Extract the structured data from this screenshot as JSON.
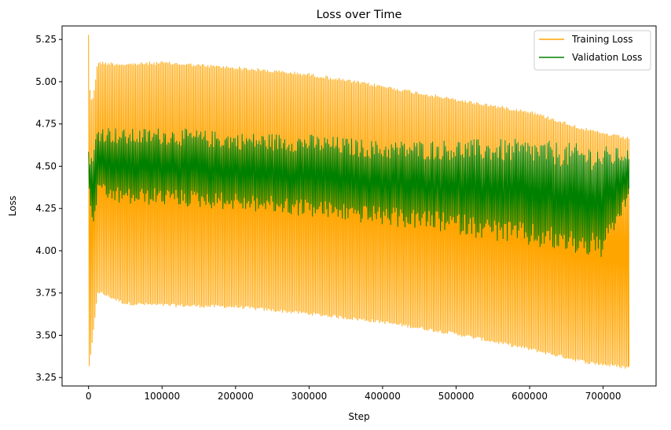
{
  "chart_data": {
    "type": "line",
    "title": "Loss over Time",
    "xlabel": "Step",
    "ylabel": "Loss",
    "xlim": [
      -36000,
      772000
    ],
    "ylim": [
      3.2,
      5.33
    ],
    "xticks": [
      0,
      100000,
      200000,
      300000,
      400000,
      500000,
      600000,
      700000
    ],
    "xtick_labels": [
      "0",
      "100000",
      "200000",
      "300000",
      "400000",
      "500000",
      "600000",
      "700000"
    ],
    "yticks": [
      3.25,
      3.5,
      3.75,
      4.0,
      4.25,
      4.5,
      4.75,
      5.0,
      5.25
    ],
    "ytick_labels": [
      "3.25",
      "3.50",
      "3.75",
      "4.00",
      "4.25",
      "4.50",
      "4.75",
      "5.00",
      "5.25"
    ],
    "grid": false,
    "legend_position": "top-right",
    "series": [
      {
        "name": "Training Loss",
        "color": "#FFA500",
        "oscillating": true,
        "upper_envelope": {
          "x": [
            0,
            2000,
            5000,
            9000,
            12000,
            50000,
            100000,
            200000,
            300000,
            400000,
            500000,
            600000,
            680000,
            735000
          ],
          "y": [
            5.29,
            4.95,
            4.88,
            5.0,
            5.12,
            5.11,
            5.12,
            5.09,
            5.05,
            4.98,
            4.9,
            4.83,
            4.72,
            4.67
          ]
        },
        "lower_envelope": {
          "x": [
            0,
            2000,
            5000,
            9000,
            12000,
            50000,
            100000,
            200000,
            300000,
            400000,
            500000,
            600000,
            680000,
            735000
          ],
          "y": [
            3.3,
            3.33,
            3.45,
            3.6,
            3.75,
            3.68,
            3.67,
            3.66,
            3.62,
            3.57,
            3.5,
            3.41,
            3.33,
            3.3
          ]
        }
      },
      {
        "name": "Validation Loss",
        "color": "#008000",
        "oscillating": true,
        "upper_envelope": {
          "x": [
            0,
            5000,
            12000,
            50000,
            100000,
            200000,
            300000,
            400000,
            500000,
            600000,
            700000,
            735000
          ],
          "y": [
            4.6,
            4.55,
            4.75,
            4.72,
            4.73,
            4.7,
            4.69,
            4.65,
            4.66,
            4.66,
            4.62,
            4.6
          ]
        },
        "lower_envelope": {
          "x": [
            0,
            5000,
            12000,
            50000,
            100000,
            200000,
            300000,
            400000,
            500000,
            600000,
            700000,
            735000
          ],
          "y": [
            4.35,
            4.1,
            4.3,
            4.27,
            4.27,
            4.24,
            4.2,
            4.15,
            4.1,
            4.02,
            3.95,
            4.3
          ]
        }
      }
    ]
  }
}
